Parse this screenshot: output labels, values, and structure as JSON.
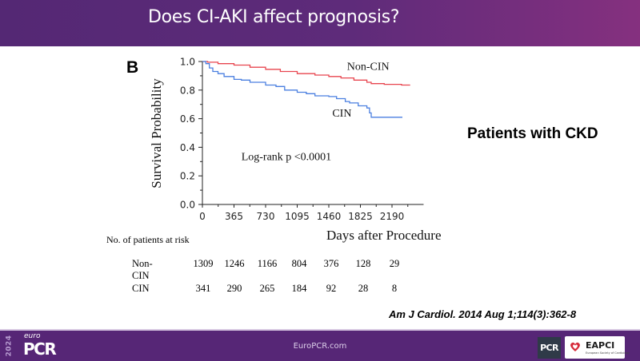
{
  "slide": {
    "title": "Does CI-AKI affect prognosis?",
    "panel_letter": "B",
    "side_label": "Patients with CKD",
    "citation": "Am J Cardiol. 2014 Aug 1;114(3):362-8"
  },
  "risk_table": {
    "title": "No. of patients at risk",
    "rows": [
      {
        "label": "Non-CIN",
        "values": [
          "1309",
          "1246",
          "1166",
          "804",
          "376",
          "128",
          "29"
        ]
      },
      {
        "label": "CIN",
        "values": [
          "341",
          "290",
          "265",
          "184",
          "92",
          "28",
          "8"
        ]
      }
    ]
  },
  "footer": {
    "year": "2024",
    "brand_prefix": "euro",
    "brand": "PCR",
    "url": "EuroPCR.com",
    "partner_logo_1": "PCR",
    "partner_logo_2": "EAPCI",
    "partner_logo_2_sub": "European Society of Cardiology"
  },
  "colors": {
    "header_start": "#542874",
    "header_end": "#85307f",
    "footer_bg": "#562676",
    "non_cin": "#e8454f",
    "cin": "#4a7fe0"
  },
  "chart_data": {
    "type": "line",
    "subtype": "kaplan-meier",
    "title": "",
    "xlabel": "Days after Procedure",
    "ylabel": "Survival Probability",
    "xlim": [
      0,
      2555
    ],
    "ylim": [
      0,
      1.0
    ],
    "xticks": [
      0,
      365,
      730,
      1095,
      1460,
      1825,
      2190
    ],
    "xtick_labels": [
      "0",
      "365",
      "730",
      "1095",
      "1460",
      "1825",
      "2190"
    ],
    "yticks": [
      0.0,
      0.2,
      0.4,
      0.6,
      0.8,
      1.0
    ],
    "ytick_labels": [
      "0.0",
      "0.2",
      "0.4",
      "0.6",
      "0.8",
      "1.0"
    ],
    "grid": false,
    "annotations": [
      {
        "text": "Log-rank p <0.0001",
        "x": 450,
        "y": 0.31
      },
      {
        "text": "Non-CIN",
        "x": 1670,
        "y": 0.94
      },
      {
        "text": "CIN",
        "x": 1500,
        "y": 0.615
      }
    ],
    "series": [
      {
        "name": "Non-CIN",
        "color": "#e8454f",
        "x": [
          0,
          60,
          180,
          365,
          550,
          730,
          900,
          1095,
          1300,
          1460,
          1600,
          1750,
          1900,
          1950,
          2100,
          2300,
          2400
        ],
        "y": [
          1.0,
          0.995,
          0.985,
          0.975,
          0.96,
          0.945,
          0.93,
          0.915,
          0.905,
          0.895,
          0.885,
          0.87,
          0.855,
          0.845,
          0.84,
          0.835,
          0.835
        ]
      },
      {
        "name": "CIN",
        "color": "#4a7fe0",
        "x": [
          0,
          40,
          80,
          120,
          180,
          250,
          365,
          450,
          550,
          730,
          850,
          950,
          1095,
          1200,
          1300,
          1460,
          1550,
          1650,
          1700,
          1800,
          1900,
          1930,
          1950,
          2100,
          2310
        ],
        "y": [
          1.0,
          0.985,
          0.955,
          0.93,
          0.915,
          0.895,
          0.875,
          0.87,
          0.855,
          0.835,
          0.825,
          0.8,
          0.785,
          0.775,
          0.76,
          0.755,
          0.74,
          0.72,
          0.71,
          0.69,
          0.675,
          0.64,
          0.61,
          0.61,
          0.61
        ]
      }
    ]
  }
}
